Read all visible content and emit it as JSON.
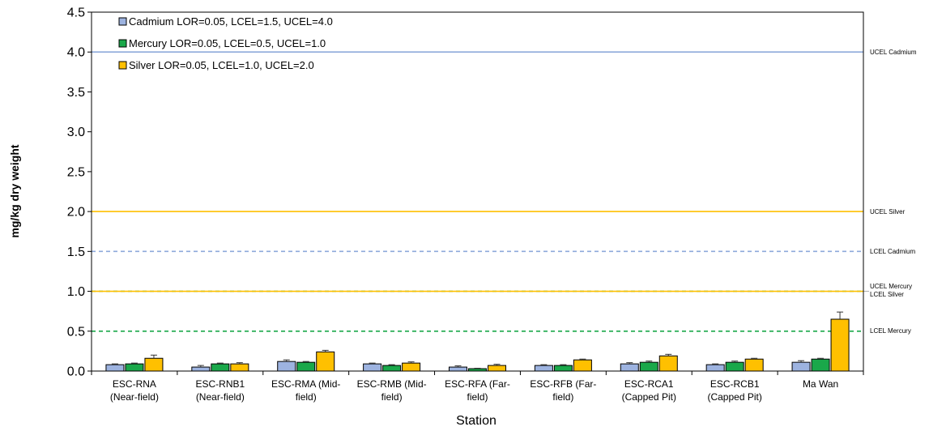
{
  "chart_data": {
    "type": "bar",
    "xlabel": "Station",
    "ylabel": "mg/kg dry weight",
    "ylim": [
      0,
      4.5
    ],
    "yticks": [
      "0.0",
      "0.5",
      "1.0",
      "1.5",
      "2.0",
      "2.5",
      "3.0",
      "3.5",
      "4.0",
      "4.5"
    ],
    "grid": false,
    "legend_position": "top-left",
    "categories": [
      [
        "ESC-RNA",
        "(Near-field)"
      ],
      [
        "ESC-RNB1",
        "(Near-field)"
      ],
      [
        "ESC-RMA (Mid-",
        "field)"
      ],
      [
        "ESC-RMB (Mid-",
        "field)"
      ],
      [
        "ESC-RFA (Far-",
        "field)"
      ],
      [
        "ESC-RFB (Far-",
        "field)"
      ],
      [
        "ESC-RCA1",
        "(Capped Pit)"
      ],
      [
        "ESC-RCB1",
        "(Capped Pit)"
      ],
      [
        "Ma Wan",
        ""
      ]
    ],
    "series": [
      {
        "name": "Cadmium LOR=0.05, LCEL=1.5, UCEL=4.0",
        "color": "#9DB3E0",
        "values": [
          0.08,
          0.05,
          0.12,
          0.09,
          0.05,
          0.07,
          0.09,
          0.08,
          0.11
        ],
        "error": [
          0.01,
          0.02,
          0.02,
          0.01,
          0.015,
          0.01,
          0.015,
          0.01,
          0.02
        ]
      },
      {
        "name": "Mercury LOR=0.05, LCEL=0.5, UCEL=1.0",
        "color": "#1AA84A",
        "values": [
          0.09,
          0.09,
          0.11,
          0.07,
          0.03,
          0.07,
          0.11,
          0.11,
          0.15
        ],
        "error": [
          0.01,
          0.01,
          0.01,
          0.01,
          0.005,
          0.01,
          0.015,
          0.015,
          0.01
        ]
      },
      {
        "name": "Silver LOR=0.05, LCEL=1.0, UCEL=2.0",
        "color": "#FFC000",
        "values": [
          0.16,
          0.09,
          0.24,
          0.1,
          0.07,
          0.14,
          0.19,
          0.15,
          0.65
        ],
        "error": [
          0.04,
          0.015,
          0.02,
          0.015,
          0.015,
          0.01,
          0.02,
          0.01,
          0.09
        ]
      }
    ],
    "reference_lines": [
      {
        "label": "UCEL Cadmium",
        "value": 4.0,
        "color": "#8EAADB",
        "style": "solid"
      },
      {
        "label": "UCEL Silver",
        "value": 2.0,
        "color": "#FFC000",
        "style": "solid"
      },
      {
        "label": "LCEL Cadmium",
        "value": 1.5,
        "color": "#8EAADB",
        "style": "dashed"
      },
      {
        "label": "UCEL Mercury",
        "value": 1.0,
        "color": "#1AA84A",
        "style": "dashed"
      },
      {
        "label": "LCEL Silver",
        "value": 1.0,
        "color": "#FFC000",
        "style": "solid"
      },
      {
        "label": "LCEL Mercury",
        "value": 0.5,
        "color": "#1AA84A",
        "style": "dashed"
      }
    ]
  }
}
